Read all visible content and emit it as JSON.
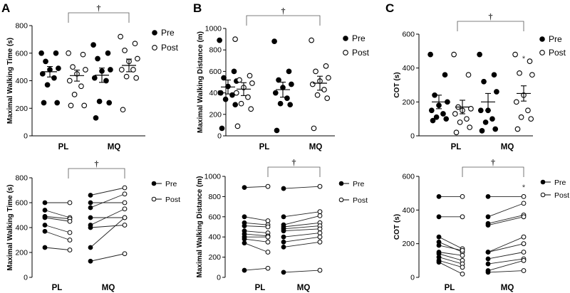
{
  "chart_data": [
    {
      "id": "A-top",
      "panel_letter": "A",
      "type": "scatter",
      "ylabel": "Maximal Walking Time (s)",
      "ylim": [
        0,
        800
      ],
      "yticks": [
        "0",
        "200",
        "400",
        "600",
        "800"
      ],
      "categories": [
        "PL",
        "MQ"
      ],
      "legend": [
        "Pre",
        "Post"
      ],
      "bracket": "†",
      "star": "",
      "series": [
        {
          "name": "Pre",
          "group": "PL",
          "values": [
            600,
            600,
            540,
            490,
            480,
            450,
            420,
            370,
            240,
            240
          ],
          "mean": 465,
          "sem": 38
        },
        {
          "name": "Post",
          "group": "PL",
          "values": [
            600,
            590,
            500,
            480,
            450,
            400,
            360,
            300,
            220,
            220
          ],
          "mean": 437,
          "sem": 40
        },
        {
          "name": "Pre",
          "group": "MQ",
          "values": [
            660,
            600,
            560,
            480,
            470,
            420,
            400,
            250,
            240,
            130
          ],
          "mean": 440,
          "sem": 52
        },
        {
          "name": "Post",
          "group": "MQ",
          "values": [
            720,
            670,
            620,
            560,
            540,
            480,
            480,
            430,
            420,
            190
          ],
          "mean": 511,
          "sem": 46
        }
      ]
    },
    {
      "id": "A-bottom",
      "type": "line",
      "ylabel": "Maximal Walking Time (s)",
      "ylim": [
        0,
        800
      ],
      "yticks": [
        "0",
        "200",
        "400",
        "600",
        "800"
      ],
      "categories": [
        "PL",
        "MQ"
      ],
      "legend": [
        "Pre",
        "Post"
      ],
      "bracket": "†",
      "star": "",
      "pairs": {
        "PL": [
          [
            600,
            600
          ],
          [
            540,
            480
          ],
          [
            490,
            470
          ],
          [
            480,
            450
          ],
          [
            420,
            360
          ],
          [
            370,
            300
          ],
          [
            240,
            220
          ]
        ],
        "MQ": [
          [
            660,
            720
          ],
          [
            600,
            600
          ],
          [
            560,
            670
          ],
          [
            480,
            480
          ],
          [
            420,
            550
          ],
          [
            400,
            420
          ],
          [
            240,
            480
          ],
          [
            130,
            190
          ]
        ]
      }
    },
    {
      "id": "B-top",
      "panel_letter": "B",
      "type": "scatter",
      "ylabel": "Maximal Walking Distance (m)",
      "ylim": [
        0,
        1000
      ],
      "yticks": [
        "0",
        "200",
        "400",
        "600",
        "800",
        "1000"
      ],
      "categories": [
        "PL",
        "MQ"
      ],
      "legend": [
        "Pre",
        "Post"
      ],
      "bracket": "†",
      "star": "",
      "series": [
        {
          "name": "Pre",
          "group": "PL",
          "values": [
            890,
            600,
            540,
            510,
            460,
            400,
            380,
            340,
            290,
            70
          ],
          "mean": 455,
          "sem": 65
        },
        {
          "name": "Post",
          "group": "PL",
          "values": [
            900,
            560,
            520,
            490,
            450,
            400,
            360,
            300,
            250,
            90
          ],
          "mean": 435,
          "sem": 60
        },
        {
          "name": "Pre",
          "group": "MQ",
          "values": [
            880,
            600,
            520,
            480,
            450,
            400,
            350,
            300,
            290,
            50
          ],
          "mean": 430,
          "sem": 70
        },
        {
          "name": "Post",
          "group": "MQ",
          "values": [
            890,
            650,
            600,
            540,
            510,
            480,
            430,
            380,
            350,
            70
          ],
          "mean": 490,
          "sem": 65
        }
      ]
    },
    {
      "id": "B-bottom",
      "type": "line",
      "ylabel": "Maximal Walking Distance (m)",
      "ylim": [
        0,
        1000
      ],
      "yticks": [
        "0",
        "200",
        "400",
        "600",
        "800",
        "1000"
      ],
      "categories": [
        "PL",
        "MQ"
      ],
      "legend": [
        "Pre",
        "Post"
      ],
      "bracket": "†",
      "star": "",
      "pairs": {
        "PL": [
          [
            890,
            900
          ],
          [
            600,
            560
          ],
          [
            540,
            520
          ],
          [
            510,
            500
          ],
          [
            460,
            440
          ],
          [
            430,
            410
          ],
          [
            400,
            400
          ],
          [
            380,
            350
          ],
          [
            340,
            250
          ],
          [
            70,
            90
          ]
        ],
        "MQ": [
          [
            880,
            900
          ],
          [
            600,
            650
          ],
          [
            520,
            610
          ],
          [
            500,
            540
          ],
          [
            480,
            510
          ],
          [
            460,
            480
          ],
          [
            400,
            440
          ],
          [
            350,
            400
          ],
          [
            300,
            350
          ],
          [
            50,
            70
          ]
        ]
      }
    },
    {
      "id": "C-top",
      "panel_letter": "C",
      "type": "scatter",
      "ylabel": "COT (s)",
      "ylim": [
        0,
        600
      ],
      "yticks": [
        "0",
        "200",
        "400",
        "600"
      ],
      "categories": [
        "PL",
        "MQ"
      ],
      "legend": [
        "Pre",
        "Post"
      ],
      "bracket": "†",
      "star": "*",
      "series": [
        {
          "name": "Pre",
          "group": "PL",
          "values": [
            480,
            360,
            240,
            200,
            180,
            150,
            130,
            110,
            100,
            90
          ],
          "mean": 200,
          "sem": 40
        },
        {
          "name": "Post",
          "group": "PL",
          "values": [
            480,
            360,
            170,
            160,
            150,
            130,
            100,
            80,
            50,
            20
          ],
          "mean": 170,
          "sem": 40
        },
        {
          "name": "Pre",
          "group": "MQ",
          "values": [
            480,
            360,
            320,
            260,
            150,
            150,
            100,
            80,
            40,
            30
          ],
          "mean": 200,
          "sem": 50
        },
        {
          "name": "Post",
          "group": "MQ",
          "values": [
            480,
            440,
            370,
            360,
            240,
            200,
            150,
            110,
            100,
            40
          ],
          "mean": 250,
          "sem": 45
        }
      ]
    },
    {
      "id": "C-bottom",
      "type": "line",
      "ylabel": "COT (s)",
      "ylim": [
        0,
        600
      ],
      "yticks": [
        "0",
        "200",
        "400",
        "600"
      ],
      "categories": [
        "PL",
        "MQ"
      ],
      "legend": [
        "Pre",
        "Post"
      ],
      "bracket": "†",
      "star": "*",
      "pairs": {
        "PL": [
          [
            480,
            480
          ],
          [
            360,
            360
          ],
          [
            240,
            170
          ],
          [
            210,
            150
          ],
          [
            190,
            160
          ],
          [
            150,
            130
          ],
          [
            140,
            100
          ],
          [
            120,
            80
          ],
          [
            100,
            60
          ],
          [
            90,
            20
          ]
        ],
        "MQ": [
          [
            480,
            480
          ],
          [
            360,
            440
          ],
          [
            320,
            370
          ],
          [
            310,
            360
          ],
          [
            150,
            240
          ],
          [
            150,
            200
          ],
          [
            110,
            150
          ],
          [
            80,
            110
          ],
          [
            40,
            100
          ],
          [
            30,
            40
          ]
        ]
      }
    }
  ]
}
